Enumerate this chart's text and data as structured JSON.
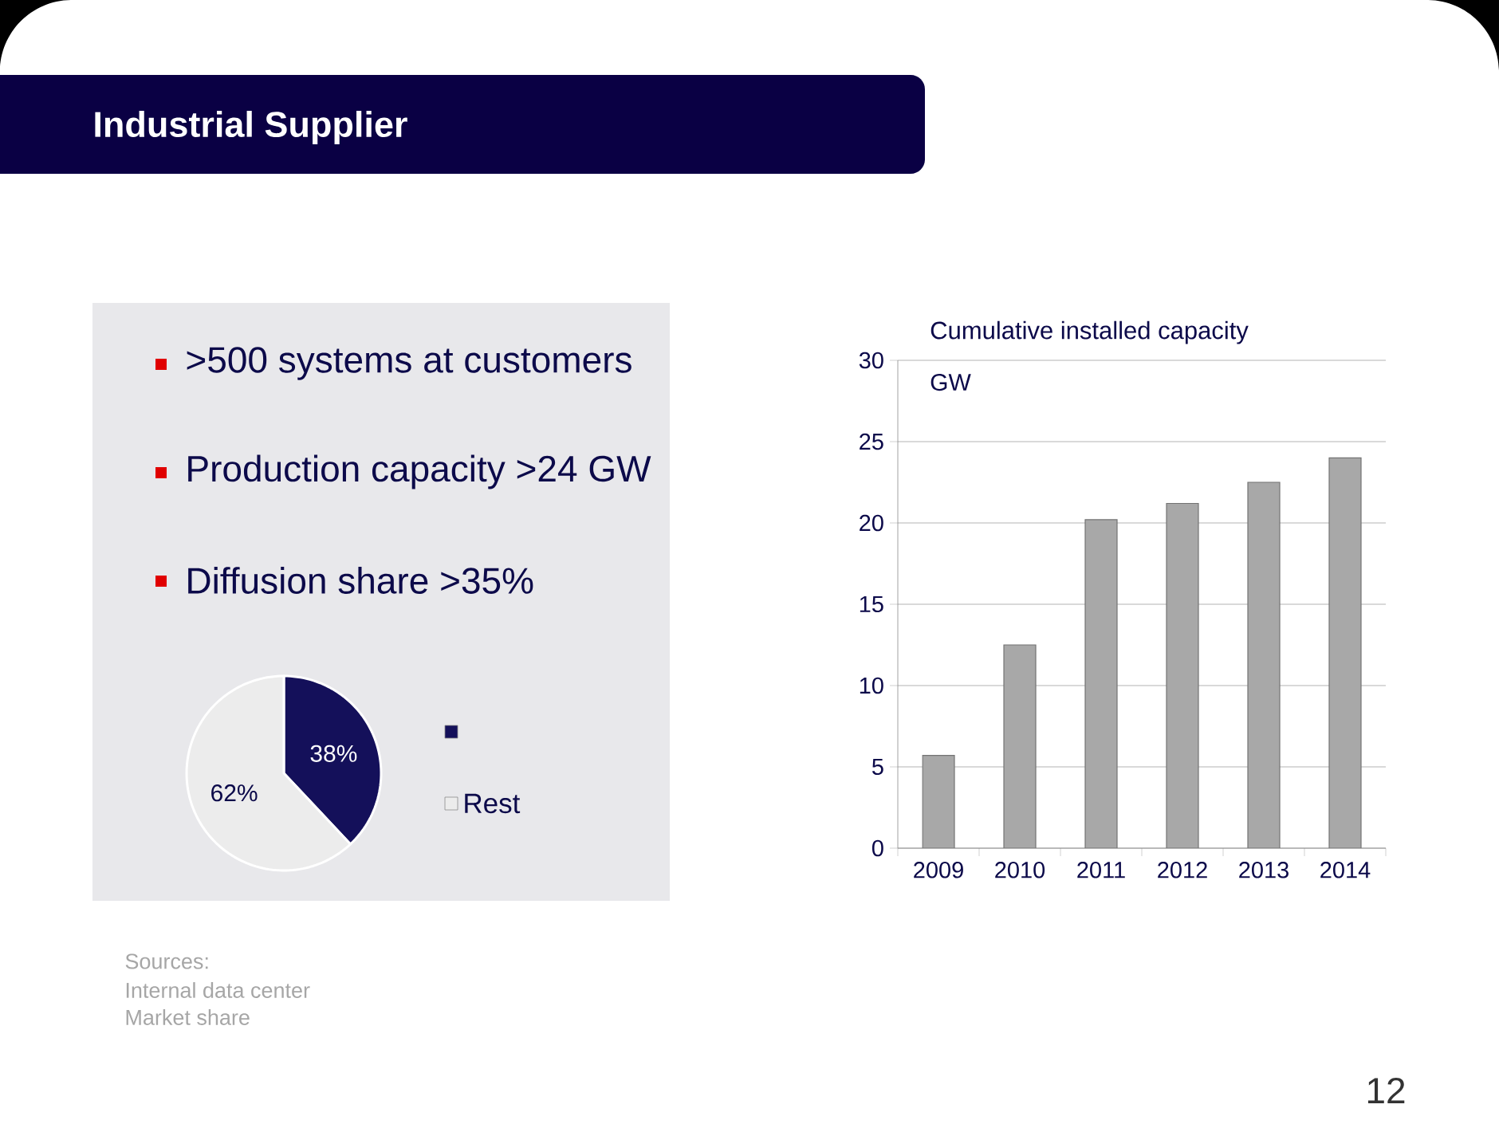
{
  "chart_data": [
    {
      "type": "other",
      "title": "Industrial Supplier",
      "annotations": [
        ">500 systems at customers",
        "Production capacity >24 GW",
        "Diffusion share >35%",
        "Sources:",
        "Internal data center",
        "Market share",
        "12"
      ]
    },
    {
      "type": "pie",
      "categories": [
        null,
        "Rest"
      ],
      "values": [
        38,
        62
      ],
      "colors": [
        "#14105a",
        "#ececec"
      ],
      "value_labels": [
        "38%",
        "62%"
      ],
      "legend": "right"
    },
    {
      "type": "bar",
      "title": "Cumulative installed capacity",
      "ylabel": "GW",
      "categories": [
        "2009",
        "2010",
        "2011",
        "2012",
        "2013",
        "2014"
      ],
      "values": [
        5.7,
        12.5,
        20.2,
        21.2,
        22.5,
        24.0
      ],
      "color": "#a8a8a8",
      "ylim": [
        0,
        30
      ],
      "yticks": [
        0,
        5,
        10,
        15,
        20,
        25,
        30
      ],
      "grid": "y"
    }
  ]
}
